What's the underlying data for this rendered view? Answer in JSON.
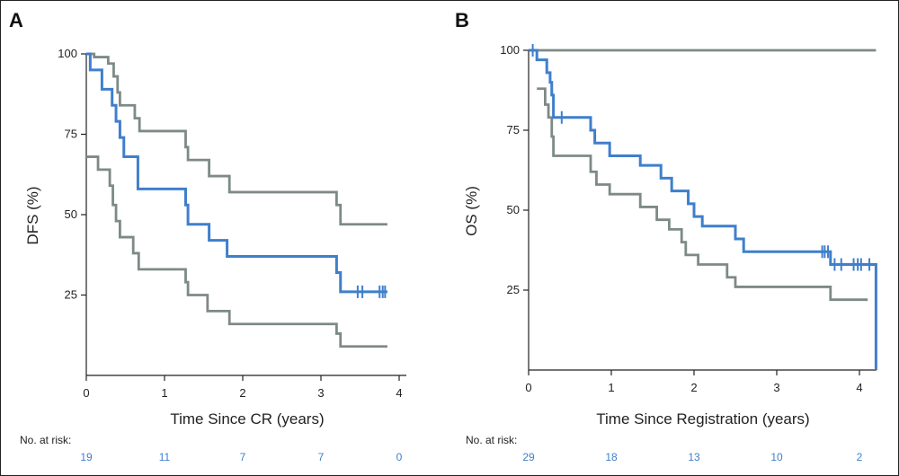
{
  "chart_data": [
    {
      "panel": "A",
      "type": "line",
      "ylabel": "DFS (%)",
      "xlabel": "Time Since CR (years)",
      "xlim": [
        0,
        4
      ],
      "ylim": [
        0,
        100
      ],
      "xticks": [
        0,
        1,
        2,
        3,
        4
      ],
      "yticks": [
        25,
        50,
        75,
        100
      ],
      "colors": {
        "estimate": "#3f7fcc",
        "ci": "#7d8a86"
      },
      "risk_table": {
        "title": "No. at risk:",
        "x": [
          0,
          1,
          2,
          3,
          4
        ],
        "values": [
          "19",
          "11",
          "7",
          "7",
          "0"
        ]
      },
      "series": [
        {
          "role": "estimate",
          "step": [
            [
              0,
              100
            ],
            [
              0.05,
              95
            ],
            [
              0.2,
              89
            ],
            [
              0.33,
              84
            ],
            [
              0.38,
              79
            ],
            [
              0.43,
              74
            ],
            [
              0.48,
              68
            ],
            [
              0.66,
              58
            ],
            [
              1.27,
              53
            ],
            [
              1.3,
              47
            ],
            [
              1.57,
              42
            ],
            [
              1.8,
              37
            ],
            [
              3.2,
              32
            ],
            [
              3.25,
              26
            ],
            [
              3.85,
              26
            ]
          ],
          "censored": [
            3.47,
            3.53,
            3.75,
            3.79,
            3.82
          ]
        },
        {
          "role": "ci-upper",
          "step": [
            [
              0,
              100
            ],
            [
              0.1,
              99
            ],
            [
              0.28,
              97
            ],
            [
              0.35,
              93
            ],
            [
              0.4,
              88
            ],
            [
              0.43,
              84
            ],
            [
              0.62,
              80
            ],
            [
              0.68,
              76
            ],
            [
              1.27,
              71
            ],
            [
              1.3,
              67
            ],
            [
              1.57,
              62
            ],
            [
              1.83,
              57
            ],
            [
              3.2,
              53
            ],
            [
              3.25,
              47
            ],
            [
              3.85,
              47
            ]
          ]
        },
        {
          "role": "ci-lower",
          "step": [
            [
              0,
              68
            ],
            [
              0.15,
              64
            ],
            [
              0.3,
              59
            ],
            [
              0.34,
              53
            ],
            [
              0.38,
              48
            ],
            [
              0.43,
              43
            ],
            [
              0.6,
              38
            ],
            [
              0.67,
              33
            ],
            [
              1.27,
              29
            ],
            [
              1.3,
              25
            ],
            [
              1.55,
              20
            ],
            [
              1.83,
              16
            ],
            [
              3.2,
              13
            ],
            [
              3.25,
              9
            ],
            [
              3.85,
              9
            ]
          ]
        }
      ]
    },
    {
      "panel": "B",
      "type": "line",
      "ylabel": "OS (%)",
      "xlabel": "Time Since Registration (years)",
      "xlim": [
        0,
        4.2
      ],
      "ylim": [
        0,
        100
      ],
      "xticks": [
        0,
        1,
        2,
        3,
        4
      ],
      "yticks": [
        25,
        50,
        75,
        100
      ],
      "colors": {
        "estimate": "#3f7fcc",
        "ci": "#7d8a86"
      },
      "risk_table": {
        "title": "No. at risk:",
        "x": [
          0,
          1,
          2,
          3,
          4
        ],
        "values": [
          "29",
          "18",
          "13",
          "10",
          "2"
        ]
      },
      "series": [
        {
          "role": "estimate",
          "step": [
            [
              0,
              100
            ],
            [
              0.1,
              97
            ],
            [
              0.22,
              93
            ],
            [
              0.26,
              90
            ],
            [
              0.28,
              86
            ],
            [
              0.3,
              79
            ],
            [
              0.75,
              75
            ],
            [
              0.8,
              71
            ],
            [
              0.98,
              67
            ],
            [
              1.35,
              64
            ],
            [
              1.6,
              60
            ],
            [
              1.73,
              56
            ],
            [
              1.93,
              52
            ],
            [
              2.0,
              48
            ],
            [
              2.1,
              45
            ],
            [
              2.5,
              41
            ],
            [
              2.6,
              37
            ],
            [
              3.65,
              33
            ],
            [
              4.2,
              33
            ],
            [
              4.2,
              0
            ]
          ],
          "censored": [
            0.05,
            0.4,
            3.55,
            3.58,
            3.62,
            3.7,
            3.78,
            3.93,
            3.98,
            4.02,
            4.12
          ]
        },
        {
          "role": "ci-upper",
          "step": [
            [
              0,
              100
            ],
            [
              4.2,
              100
            ]
          ]
        },
        {
          "role": "ci-lower",
          "step": [
            [
              0.1,
              88
            ],
            [
              0.2,
              83
            ],
            [
              0.24,
              79
            ],
            [
              0.28,
              73
            ],
            [
              0.3,
              67
            ],
            [
              0.75,
              62
            ],
            [
              0.82,
              58
            ],
            [
              0.98,
              55
            ],
            [
              1.35,
              51
            ],
            [
              1.55,
              47
            ],
            [
              1.7,
              44
            ],
            [
              1.85,
              40
            ],
            [
              1.9,
              36
            ],
            [
              2.05,
              33
            ],
            [
              2.4,
              29
            ],
            [
              2.5,
              26
            ],
            [
              3.65,
              22
            ],
            [
              4.1,
              22
            ]
          ]
        }
      ]
    }
  ]
}
